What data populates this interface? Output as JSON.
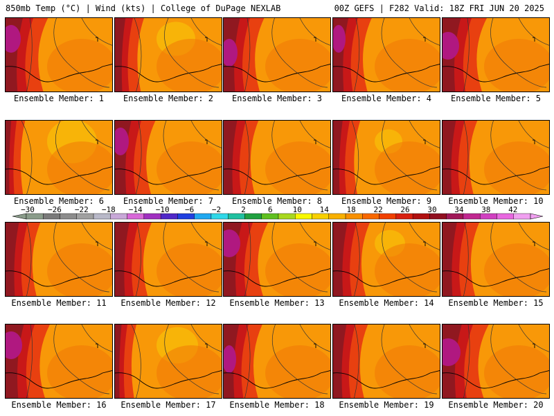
{
  "header": {
    "left": "850mb Temp (°C) | Wind (kts) | College of DuPage NEXLAB",
    "right": "00Z GEFS | F282 Valid: 18Z FRI JUN 20 2025"
  },
  "panels": [
    {
      "label": "Ensemble Member: 1",
      "hot": 0.75,
      "warm": 0.35
    },
    {
      "label": "Ensemble Member: 2",
      "hot": 0.4,
      "warm": 0.7
    },
    {
      "label": "Ensemble Member: 3",
      "hot": 0.7,
      "warm": 0.35
    },
    {
      "label": "Ensemble Member: 4",
      "hot": 0.65,
      "warm": 0.4
    },
    {
      "label": "Ensemble Member: 5",
      "hot": 0.8,
      "warm": 0.3
    },
    {
      "label": "Ensemble Member: 6",
      "hot": 0.15,
      "warm": 0.9
    },
    {
      "label": "Ensemble Member: 7",
      "hot": 0.7,
      "warm": 0.4
    },
    {
      "label": "Ensemble Member: 8",
      "hot": 0.55,
      "warm": 0.35
    },
    {
      "label": "Ensemble Member: 9",
      "hot": 0.35,
      "warm": 0.5
    },
    {
      "label": "Ensemble Member: 10",
      "hot": 0.55,
      "warm": 0.35
    },
    {
      "label": "Ensemble Member: 11",
      "hot": 0.55,
      "warm": 0.35
    },
    {
      "label": "Ensemble Member: 12",
      "hot": 0.6,
      "warm": 0.4
    },
    {
      "label": "Ensemble Member: 13",
      "hot": 0.8,
      "warm": 0.4
    },
    {
      "label": "Ensemble Member: 14",
      "hot": 0.6,
      "warm": 0.55
    },
    {
      "label": "Ensemble Member: 15",
      "hot": 0.6,
      "warm": 0.35
    },
    {
      "label": "Ensemble Member: 16",
      "hot": 0.8,
      "warm": 0.35
    },
    {
      "label": "Ensemble Member: 17",
      "hot": 0.2,
      "warm": 0.75
    },
    {
      "label": "Ensemble Member: 18",
      "hot": 0.65,
      "warm": 0.45
    },
    {
      "label": "Ensemble Member: 19",
      "hot": 0.55,
      "warm": 0.4
    },
    {
      "label": "Ensemble Member: 20",
      "hot": 0.85,
      "warm": 0.35
    }
  ],
  "colorbar": {
    "labels": [
      "-30",
      "-26",
      "-22",
      "-18",
      "-14",
      "-10",
      "-6",
      "-2",
      "2",
      "6",
      "10",
      "14",
      "18",
      "22",
      "26",
      "30",
      "34",
      "38",
      "42"
    ],
    "colors": [
      "#8a9c8a",
      "#7a7a7a",
      "#8c8c8c",
      "#a0a0a0",
      "#b8b8c8",
      "#c8a8d8",
      "#d868d8",
      "#a030c0",
      "#5028c8",
      "#2040e0",
      "#20a8f0",
      "#30d8e8",
      "#20c0a0",
      "#20a040",
      "#60c020",
      "#a8d820",
      "#f8f800",
      "#f8d000",
      "#f8b000",
      "#f89000",
      "#f86800",
      "#f04000",
      "#d82010",
      "#b01010",
      "#901020",
      "#a01858",
      "#c02890",
      "#d040c0",
      "#e868e0",
      "#f0a0f0"
    ],
    "colors_hot": {
      "purple": "#b01880",
      "darkred": "#901820",
      "red": "#c81818",
      "redorange": "#e84010",
      "orange": "#f07808",
      "lightorange": "#f89808",
      "yellow": "#f8b808"
    }
  }
}
